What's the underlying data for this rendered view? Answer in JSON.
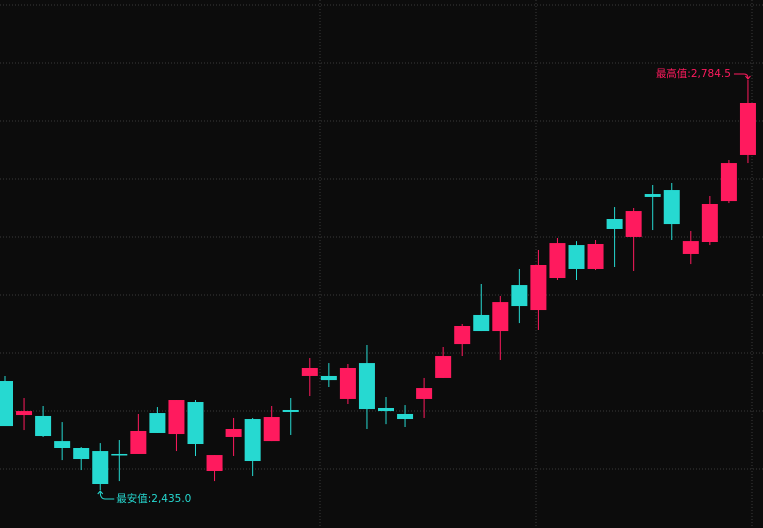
{
  "chart_data": {
    "type": "candlestick",
    "up_color": "#ff1a5e",
    "down_color": "#26d9d1",
    "ylim": [
      2402.6,
      2852.7
    ],
    "open": [
      2527.9,
      2498.9,
      2498.1,
      2476.7,
      2470.8,
      2468.2,
      2465.7,
      2465.7,
      2500.6,
      2482.7,
      2510.0,
      2451.2,
      2480.2,
      2495.5,
      2476.7,
      2503.2,
      2532.2,
      2532.2,
      2512.6,
      2543.2,
      2504.9,
      2499.8,
      2512.6,
      2530.5,
      2559.4,
      2584.2,
      2570.5,
      2609.7,
      2588.4,
      2615.7,
      2643.8,
      2623.4,
      2666.0,
      2650.7,
      2687.3,
      2690.7,
      2636.2,
      2646.4,
      2681.3,
      2720.6
    ],
    "high": [
      2532.2,
      2513.4,
      2506.6,
      2492.9,
      2471.6,
      2475.0,
      2477.6,
      2499.8,
      2505.7,
      2511.7,
      2511.7,
      2464.8,
      2496.4,
      2496.4,
      2506.6,
      2513.4,
      2547.5,
      2543.2,
      2542.4,
      2558.6,
      2514.3,
      2507.4,
      2530.5,
      2556.9,
      2576.5,
      2610.6,
      2600.4,
      2623.4,
      2639.6,
      2649.8,
      2647.2,
      2648.1,
      2676.2,
      2675.4,
      2695.0,
      2696.7,
      2655.8,
      2685.6,
      2716.3,
      2784.5
    ],
    "low": [
      2489.5,
      2486.1,
      2480.2,
      2460.5,
      2452.0,
      2435.0,
      2442.6,
      2465.7,
      2483.6,
      2468.2,
      2464.0,
      2442.6,
      2464.0,
      2446.9,
      2476.7,
      2481.9,
      2515.1,
      2522.8,
      2508.3,
      2487.0,
      2491.2,
      2488.7,
      2496.4,
      2530.5,
      2549.2,
      2570.5,
      2545.8,
      2577.3,
      2571.4,
      2614.0,
      2614.0,
      2622.5,
      2625.1,
      2621.7,
      2656.6,
      2648.1,
      2627.6,
      2643.8,
      2679.6,
      2713.7
    ],
    "close": [
      2489.5,
      2502.3,
      2481.0,
      2470.8,
      2461.4,
      2440.1,
      2464.8,
      2485.3,
      2483.6,
      2511.7,
      2474.2,
      2464.8,
      2487.0,
      2459.7,
      2497.2,
      2501.5,
      2539.0,
      2528.7,
      2539.0,
      2504.0,
      2502.3,
      2495.5,
      2521.9,
      2549.2,
      2574.8,
      2570.5,
      2595.2,
      2591.8,
      2626.8,
      2645.5,
      2623.4,
      2644.7,
      2657.5,
      2672.8,
      2684.8,
      2661.7,
      2647.2,
      2678.8,
      2713.7,
      2764.9
    ],
    "max_annotation": {
      "value": 2784.5,
      "label": "最高值:2,784.5"
    },
    "min_annotation": {
      "value": 2435.0,
      "label": "最安值:2,435.0"
    }
  }
}
